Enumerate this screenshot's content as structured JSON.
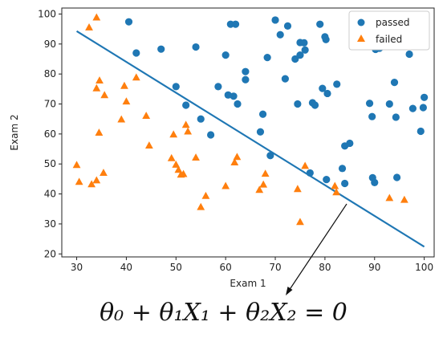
{
  "chart_data": {
    "type": "scatter",
    "xlabel": "Exam 1",
    "ylabel": "Exam 2",
    "xlim": [
      27,
      102
    ],
    "ylim": [
      19,
      102
    ],
    "xticks": [
      30,
      40,
      50,
      60,
      70,
      80,
      90,
      100
    ],
    "yticks": [
      20,
      30,
      40,
      50,
      60,
      70,
      80,
      90,
      100
    ],
    "grid": false,
    "legend": {
      "position": "top-right",
      "entries": [
        "passed",
        "failed"
      ]
    },
    "colors": {
      "passed": "#1f77b4",
      "failed": "#ff7f0e",
      "boundary": "#1f77b4"
    },
    "series": [
      {
        "name": "passed",
        "marker": "circle",
        "points": [
          [
            40.5,
            97.4
          ],
          [
            42,
            87
          ],
          [
            47,
            88.3
          ],
          [
            54,
            89
          ],
          [
            50,
            75.8
          ],
          [
            52,
            69.6
          ],
          [
            55,
            65
          ],
          [
            57,
            59.7
          ],
          [
            58.5,
            75.8
          ],
          [
            60,
            86.3
          ],
          [
            60.5,
            73
          ],
          [
            61,
            96.6
          ],
          [
            62,
            96.6
          ],
          [
            61.6,
            72.6
          ],
          [
            62.4,
            70
          ],
          [
            64,
            80.8
          ],
          [
            64,
            78.1
          ],
          [
            67,
            60.7
          ],
          [
            67.5,
            66.6
          ],
          [
            68.4,
            85.5
          ],
          [
            69,
            52.8
          ],
          [
            70,
            98
          ],
          [
            71,
            93.1
          ],
          [
            72,
            78.4
          ],
          [
            72.5,
            96
          ],
          [
            74,
            85
          ],
          [
            74.5,
            70
          ],
          [
            75,
            90.5
          ],
          [
            75,
            86.3
          ],
          [
            75.8,
            90.4
          ],
          [
            76,
            88
          ],
          [
            77,
            47
          ],
          [
            77.5,
            70.4
          ],
          [
            78,
            69.6
          ],
          [
            79,
            96.6
          ],
          [
            79.5,
            75.2
          ],
          [
            80,
            92.4
          ],
          [
            80.2,
            91.5
          ],
          [
            80.3,
            44.8
          ],
          [
            80.5,
            73.5
          ],
          [
            82.4,
            76.6
          ],
          [
            83.5,
            48.5
          ],
          [
            84,
            56
          ],
          [
            84,
            43.5
          ],
          [
            85,
            56.9
          ],
          [
            89,
            70.2
          ],
          [
            89.5,
            65.8
          ],
          [
            89.6,
            45.4
          ],
          [
            90,
            43.8
          ],
          [
            90.2,
            88.2
          ],
          [
            91,
            88.6
          ],
          [
            93,
            70
          ],
          [
            94,
            77.2
          ],
          [
            94.3,
            65.6
          ],
          [
            94.5,
            45.5
          ],
          [
            97,
            86.6
          ],
          [
            97.7,
            68.5
          ],
          [
            99.3,
            60.9
          ],
          [
            99.8,
            68.8
          ],
          [
            100,
            72.2
          ]
        ]
      },
      {
        "name": "failed",
        "marker": "triangle",
        "points": [
          [
            30,
            49.6
          ],
          [
            30.5,
            44
          ],
          [
            32.5,
            95.5
          ],
          [
            33,
            43.2
          ],
          [
            34,
            98.8
          ],
          [
            34,
            44.5
          ],
          [
            34,
            75.2
          ],
          [
            34.5,
            60.4
          ],
          [
            34.6,
            77.8
          ],
          [
            35.4,
            47
          ],
          [
            35.6,
            72.9
          ],
          [
            39,
            64.8
          ],
          [
            39.6,
            76
          ],
          [
            40,
            70.8
          ],
          [
            42,
            78.8
          ],
          [
            44,
            66
          ],
          [
            44.6,
            56.1
          ],
          [
            49.1,
            51.9
          ],
          [
            49.5,
            59.8
          ],
          [
            50,
            49.7
          ],
          [
            50.5,
            48
          ],
          [
            51,
            46.4
          ],
          [
            51.5,
            46.6
          ],
          [
            52,
            63
          ],
          [
            52.4,
            60.8
          ],
          [
            54,
            52.1
          ],
          [
            55,
            35.6
          ],
          [
            56,
            39.3
          ],
          [
            60,
            42.6
          ],
          [
            61.8,
            50.5
          ],
          [
            62.3,
            52.3
          ],
          [
            66.8,
            41.3
          ],
          [
            67.6,
            43.1
          ],
          [
            68,
            46.7
          ],
          [
            74.5,
            41.6
          ],
          [
            75,
            30.6
          ],
          [
            76,
            49.3
          ],
          [
            82,
            42.6
          ],
          [
            82.3,
            40.5
          ],
          [
            93,
            38.6
          ],
          [
            96,
            38
          ]
        ]
      }
    ],
    "decision_boundary": {
      "type": "line",
      "x": [
        30,
        100
      ],
      "y": [
        94.3,
        22.4
      ]
    },
    "equation": "θ₀ + θ₁X₁ + θ₂X₂ = 0"
  }
}
